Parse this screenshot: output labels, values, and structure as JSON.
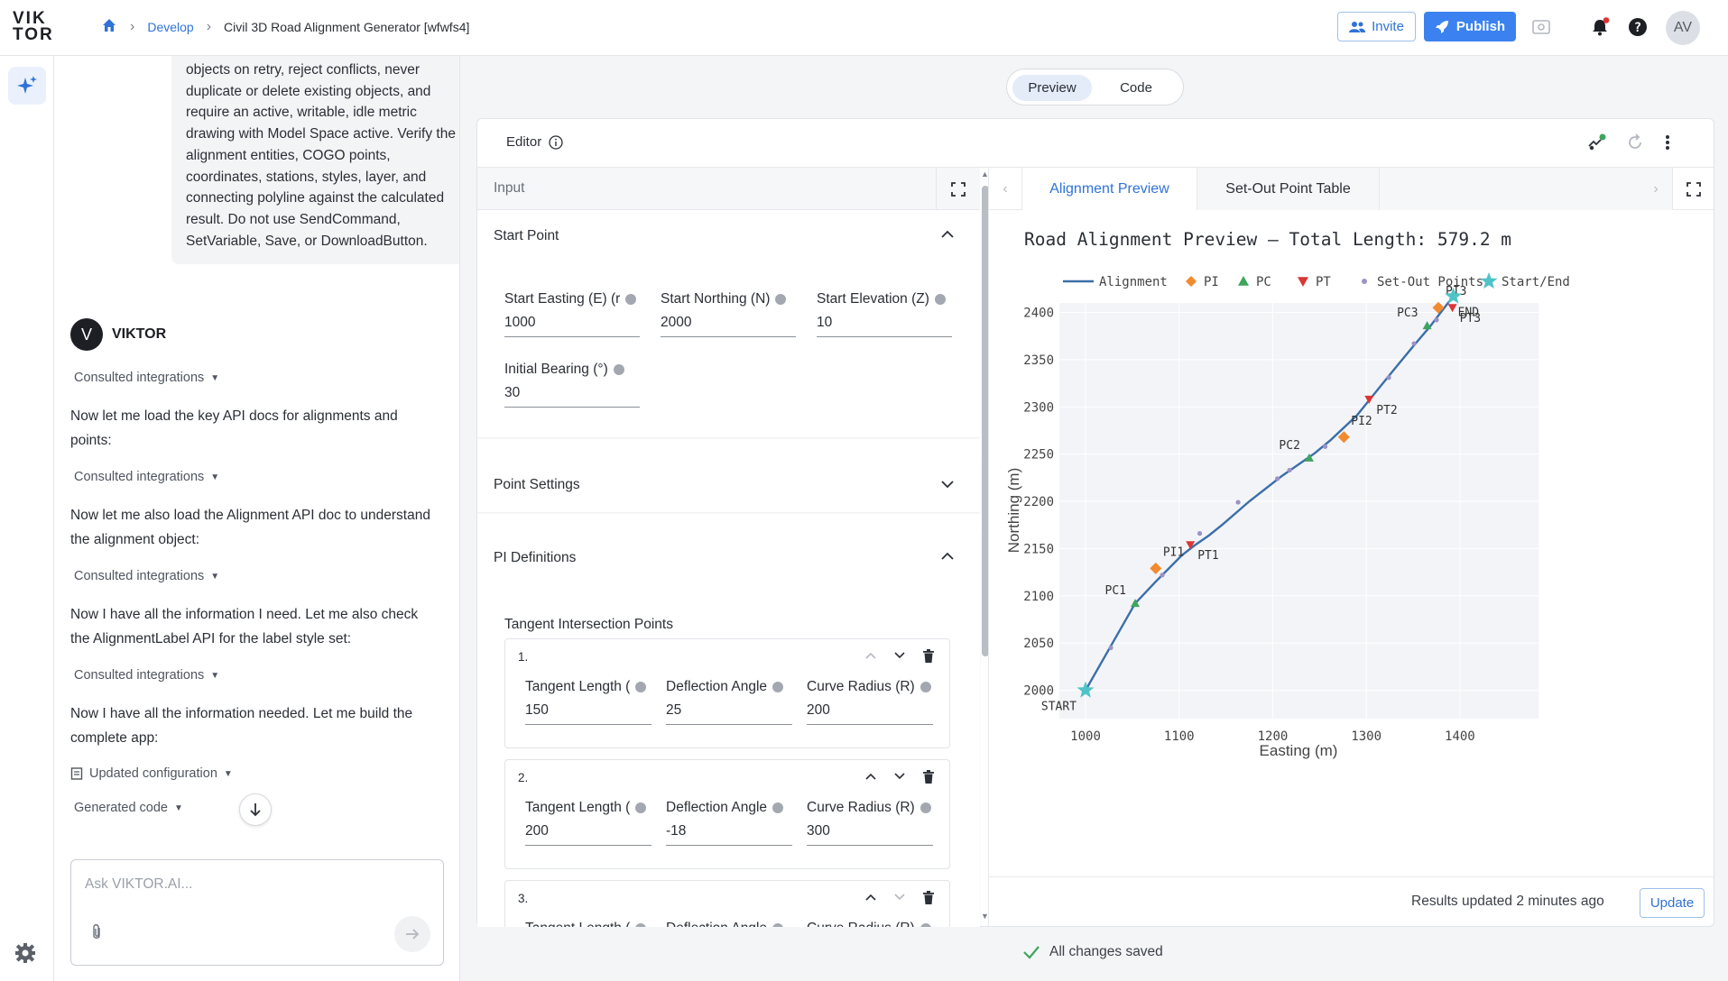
{
  "topbar": {
    "logo_top": "VIK",
    "logo_bottom": "TOR",
    "breadcrumb": {
      "root": "Develop",
      "current": "Civil 3D Road Alignment Generator [wfwfs4]"
    },
    "invite_label": "Invite",
    "publish_label": "Publish",
    "avatar_initials": "AV"
  },
  "chat": {
    "user_bubble": "objects on retry, reject conflicts, never duplicate or delete existing objects, and require an active, writable, idle metric drawing with Model Space active. Verify the alignment entities, COGO points, coordinates, stations, styles, layer, and connecting polyline against the calculated result. Do not use SendCommand, SetVariable, Save, or DownloadButton.",
    "sender_name": "VIKTOR",
    "sender_initial": "V",
    "consulted_label": "Consulted integrations",
    "messages": [
      "Now let me load the key API docs for alignments and points:",
      "Now let me also load the Alignment API doc to understand the alignment object:",
      "Now I have all the information I need. Let me also check the AlignmentLabel API for the label style set:",
      "Now I have all the information needed. Let me build the complete app:"
    ],
    "updated_config_label": "Updated configuration",
    "generated_code_label": "Generated code",
    "input_placeholder": "Ask VIKTOR.AI..."
  },
  "view_toggle": {
    "preview": "Preview",
    "code": "Code"
  },
  "editor": {
    "title": "Editor",
    "input_header": "Input",
    "start_point": {
      "title": "Start Point",
      "easting_label": "Start Easting (E) (r",
      "easting_value": "1000",
      "northing_label": "Start Northing (N)",
      "northing_value": "2000",
      "elevation_label": "Start Elevation (Z)",
      "elevation_value": "10",
      "bearing_label": "Initial Bearing (°)",
      "bearing_value": "30"
    },
    "point_settings_title": "Point Settings",
    "pi_definitions": {
      "title": "PI Definitions",
      "subtitle": "Tangent Intersection Points",
      "tangent_label": "Tangent Length (",
      "deflection_label": "Deflection Angle",
      "radius_label": "Curve Radius (R)",
      "rows": [
        {
          "num": "1.",
          "tangent": "150",
          "deflection": "25",
          "radius": "200"
        },
        {
          "num": "2.",
          "tangent": "200",
          "deflection": "-18",
          "radius": "300"
        },
        {
          "num": "3.",
          "tangent": "",
          "deflection": "",
          "radius": ""
        }
      ]
    }
  },
  "results": {
    "tab_preview": "Alignment Preview",
    "tab_table": "Set-Out Point Table",
    "status": "Results updated 2 minutes ago",
    "update_label": "Update"
  },
  "footer": {
    "saved": "All changes saved"
  },
  "colors": {
    "accent": "#2f73d6",
    "line": "#3b6fa8",
    "pi": "#f28a2e",
    "pc": "#3da55d",
    "pt": "#d93636",
    "setout": "#9a92c8",
    "startend": "#4fc3c8"
  },
  "chart_data": {
    "type": "line",
    "title": "Road Alignment Preview — Total Length: 579.2 m",
    "xlabel": "Easting (m)",
    "ylabel": "Northing (m)",
    "xlim": [
      972,
      1484
    ],
    "ylim": [
      1970,
      2410
    ],
    "xticks": [
      1000,
      1100,
      1200,
      1300,
      1400
    ],
    "yticks": [
      2000,
      2050,
      2100,
      2150,
      2200,
      2250,
      2300,
      2350,
      2400
    ],
    "legend": [
      "Alignment",
      "PI",
      "PC",
      "PT",
      "Set-Out Points",
      "Start/End"
    ],
    "legend_position": "top",
    "alignment": {
      "x": [
        1000,
        1053,
        1075,
        1090,
        1103,
        1116,
        1132,
        1147,
        1175,
        1210,
        1245,
        1262,
        1290,
        1312,
        1330,
        1350,
        1368,
        1385,
        1393
      ],
      "y": [
        2000,
        2092,
        2115,
        2130,
        2143,
        2153,
        2164,
        2176,
        2200,
        2227,
        2251,
        2265,
        2291,
        2318,
        2340,
        2364,
        2385,
        2407,
        2417
      ]
    },
    "pi": [
      {
        "label": "PI1",
        "x": 1075,
        "y": 2129
      },
      {
        "label": "PI2",
        "x": 1276,
        "y": 2268
      },
      {
        "label": "PI3",
        "x": 1377,
        "y": 2405
      }
    ],
    "pc": [
      {
        "label": "PC1",
        "x": 1053,
        "y": 2092
      },
      {
        "label": "PC2",
        "x": 1239,
        "y": 2246
      },
      {
        "label": "PC3",
        "x": 1365,
        "y": 2386
      }
    ],
    "pt": [
      {
        "label": "PT1",
        "x": 1112,
        "y": 2154
      },
      {
        "label": "PT2",
        "x": 1303,
        "y": 2308
      },
      {
        "label": "PT3",
        "x": 1392,
        "y": 2405
      }
    ],
    "setout": {
      "x": [
        1027,
        1082,
        1122,
        1163,
        1205,
        1218,
        1256,
        1324,
        1351,
        1375
      ],
      "y": [
        2045,
        2122,
        2166,
        2199,
        2224,
        2233,
        2258,
        2331,
        2367,
        2392
      ]
    },
    "start": {
      "label": "START",
      "x": 1000,
      "y": 2000
    },
    "end": {
      "label": "END",
      "x": 1393,
      "y": 2417
    }
  }
}
